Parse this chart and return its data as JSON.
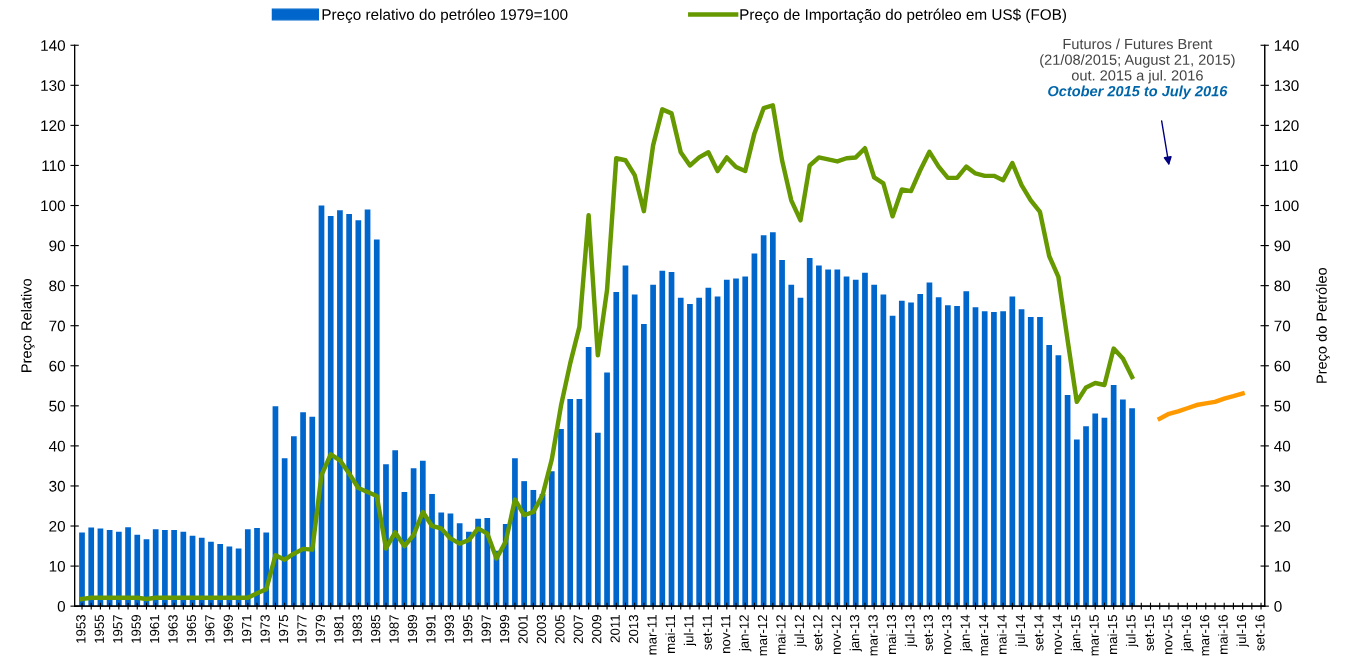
{
  "chart_data": {
    "type": "bar",
    "categories": [
      "1953",
      null,
      "1955",
      null,
      "1957",
      null,
      "1959",
      null,
      "1961",
      null,
      "1963",
      null,
      "1965",
      null,
      "1967",
      null,
      "1969",
      null,
      "1971",
      null,
      "1973",
      null,
      "1975",
      null,
      "1977",
      null,
      "1979",
      null,
      "1981",
      null,
      "1983",
      null,
      "1985",
      null,
      "1987",
      null,
      "1989",
      null,
      "1991",
      null,
      "1993",
      null,
      "1995",
      null,
      "1997",
      null,
      "1999",
      null,
      "2001",
      null,
      "2003",
      null,
      "2005",
      null,
      "2007",
      null,
      "2009",
      null,
      "2011",
      null,
      "2013",
      null,
      "mar-11",
      null,
      "mai-11",
      null,
      "jul-11",
      null,
      "set-11",
      null,
      "nov-11",
      null,
      "jan-12",
      null,
      "mar-12",
      null,
      "mai-12",
      null,
      "jul-12",
      null,
      "set-12",
      null,
      "nov-12",
      null,
      "jan-13",
      null,
      "mar-13",
      null,
      "mai-13",
      null,
      "jul-13",
      null,
      "set-13",
      null,
      "nov-13",
      null,
      "jan-14",
      null,
      "mar-14",
      null,
      "mai-14",
      null,
      "jul-14",
      null,
      "set-14",
      null,
      "nov-14",
      null,
      "jan-15",
      null,
      "mar-15",
      null,
      "mai-15",
      null,
      "jul-15",
      null,
      "set-15",
      null,
      "nov-15",
      null,
      "jan-16",
      null,
      "mar-16",
      null,
      "mai-16",
      null,
      "jul-16",
      null,
      "set-16"
    ],
    "series": [
      {
        "name": "Preço relativo do petróleo 1979=100",
        "color": "#0066cc",
        "values": [
          18.4,
          19.6,
          19.4,
          19.0,
          18.6,
          19.7,
          17.8,
          16.7,
          19.2,
          19.0,
          19.0,
          18.6,
          17.6,
          17.1,
          16.1,
          15.5,
          14.9,
          14.4,
          19.2,
          19.5,
          18.4,
          49.9,
          36.9,
          42.4,
          48.4,
          47.3,
          100,
          97.4,
          98.8,
          97.9,
          96.3,
          99.0,
          91.5,
          35.4,
          38.9,
          28.5,
          34.4,
          36.3,
          28.0,
          23.4,
          23.1,
          20.7,
          18.6,
          21.8,
          22.0,
          13.8,
          20.5,
          36.9,
          31.2,
          29.0,
          28.0,
          33.7,
          44.2,
          51.7,
          51.7,
          64.7,
          43.3,
          58.3,
          78.4,
          85.0,
          77.8,
          70.4,
          80.2,
          83.7,
          83.4,
          77.0,
          75.4,
          77.0,
          79.5,
          77.3,
          81.5,
          81.8,
          82.3,
          88.0,
          92.6,
          93.3,
          86.4,
          80.2,
          77.0,
          86.9,
          85.0,
          84.0,
          84.0,
          82.3,
          81.5,
          83.2,
          80.2,
          77.8,
          72.5,
          76.2,
          75.8,
          77.9,
          80.8,
          77.1,
          75.1,
          74.9,
          78.6,
          74.6,
          73.6,
          73.4,
          73.6,
          77.3,
          74.1,
          72.2,
          72.2,
          65.2,
          62.6,
          52.7,
          41.6,
          44.9,
          48.1,
          47.0,
          55.2,
          51.6,
          49.4,
          null,
          null,
          null,
          null,
          null,
          null,
          null,
          null,
          null,
          null,
          null,
          null,
          null,
          null
        ]
      },
      {
        "name": "Preço de Importação do petróleo em US$ (FOB)",
        "type": "line",
        "axis": "y2",
        "color": "#669900",
        "values": [
          1.8,
          2.1,
          2.1,
          2.1,
          2.1,
          2.1,
          2.1,
          1.8,
          2.1,
          2.1,
          2.1,
          2.1,
          2.1,
          2.1,
          2.1,
          2.1,
          2.1,
          2.1,
          2.1,
          3.2,
          4.2,
          12.7,
          11.6,
          13.1,
          14.3,
          14.1,
          32.7,
          37.9,
          36.4,
          33.1,
          29.5,
          28.5,
          27.5,
          14.4,
          18.4,
          15.0,
          17.7,
          23.5,
          20.0,
          19.4,
          16.9,
          15.6,
          16.5,
          19.4,
          18.1,
          11.9,
          16.1,
          26.6,
          22.7,
          23.5,
          27.7,
          36.6,
          50.0,
          60.6,
          69.7,
          97.6,
          62.6,
          78.9,
          111.8,
          111.3,
          107.6,
          98.6,
          115.0,
          124.0,
          123.0,
          113.3,
          110.0,
          112.0,
          113.3,
          108.6,
          112.0,
          109.6,
          108.6,
          118.0,
          124.3,
          125.0,
          111.3,
          101.3,
          96.3,
          110.0,
          112.0,
          111.5,
          111.0,
          111.8,
          112.0,
          114.3,
          107.0,
          105.5,
          97.3,
          104.0,
          103.6,
          108.8,
          113.4,
          109.7,
          106.9,
          106.9,
          109.7,
          108.0,
          107.4,
          107.4,
          106.3,
          110.6,
          105.1,
          101.3,
          98.4,
          87.4,
          82.2,
          66.4,
          51.0,
          54.6,
          55.7,
          55.2,
          64.3,
          61.8,
          57.2,
          null,
          null,
          null,
          null,
          null,
          null,
          null,
          null,
          null,
          null,
          null,
          null,
          null,
          null
        ]
      },
      {
        "type": "line",
        "axis": "y2",
        "color": "#ff9900",
        "values": [
          null,
          null,
          null,
          null,
          null,
          null,
          null,
          null,
          null,
          null,
          null,
          null,
          null,
          null,
          null,
          null,
          null,
          null,
          null,
          null,
          null,
          null,
          null,
          null,
          null,
          null,
          null,
          null,
          null,
          null,
          null,
          null,
          null,
          null,
          null,
          null,
          null,
          null,
          null,
          null,
          null,
          null,
          null,
          null,
          null,
          null,
          null,
          null,
          null,
          null,
          null,
          null,
          null,
          null,
          null,
          null,
          null,
          null,
          null,
          null,
          null,
          null,
          null,
          null,
          null,
          null,
          null,
          null,
          null,
          null,
          null,
          null,
          null,
          null,
          null,
          null,
          null,
          null,
          null,
          null,
          null,
          null,
          null,
          null,
          null,
          null,
          null,
          null,
          null,
          null,
          null,
          null,
          null,
          null,
          null,
          null,
          null,
          null,
          null,
          null,
          null,
          null,
          null,
          null,
          null,
          null,
          null,
          null,
          null,
          null,
          null,
          null,
          null,
          null,
          null,
          null,
          null,
          46.8,
          48.0,
          48.6,
          49.4,
          50.2,
          50.6,
          51.0,
          51.8,
          52.4,
          53.1,
          null,
          null
        ]
      }
    ],
    "ylabel": "Preço Relativo",
    "y2label": "Preço do Petróleo",
    "ylim": [
      0,
      140
    ],
    "yticks": [
      0,
      10,
      20,
      30,
      40,
      50,
      60,
      70,
      80,
      90,
      100,
      110,
      120,
      130,
      140
    ],
    "y2lim": [
      0,
      140
    ],
    "y2ticks": [
      0,
      10,
      20,
      30,
      40,
      50,
      60,
      70,
      80,
      90,
      100,
      110,
      120,
      130,
      140
    ],
    "legend": "top",
    "annotations": [
      "Futuros / Futures Brent",
      "(21/08/2015; August 21, 2015)",
      "out. 2015 a jul. 2016",
      "October 2015 to July 2016"
    ]
  }
}
